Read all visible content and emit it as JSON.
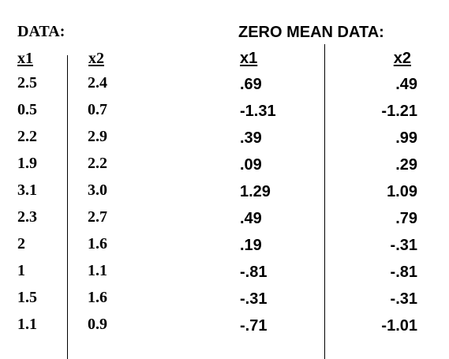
{
  "data_table": {
    "title": "DATA:",
    "headers": [
      "x1",
      "x2"
    ],
    "rows": [
      [
        "2.5",
        "2.4"
      ],
      [
        "0.5",
        "0.7"
      ],
      [
        "2.2",
        "2.9"
      ],
      [
        "1.9",
        "2.2"
      ],
      [
        "3.1",
        "3.0"
      ],
      [
        "2.3",
        "2.7"
      ],
      [
        "2",
        "1.6"
      ],
      [
        "1",
        "1.1"
      ],
      [
        "1.5",
        "1.6"
      ],
      [
        "1.1",
        "0.9"
      ]
    ]
  },
  "zero_mean_table": {
    "title": "ZERO MEAN DATA:",
    "headers": [
      "x1",
      "x2"
    ],
    "rows": [
      [
        ".69",
        ".49"
      ],
      [
        "-1.31",
        "-1.21"
      ],
      [
        ".39",
        ".99"
      ],
      [
        ".09",
        ".29"
      ],
      [
        "1.29",
        "1.09"
      ],
      [
        ".49",
        ".79"
      ],
      [
        ".19",
        "-.31"
      ],
      [
        "-.81",
        "-.81"
      ],
      [
        "-.31",
        "-.31"
      ],
      [
        "-.71",
        "-1.01"
      ]
    ]
  }
}
